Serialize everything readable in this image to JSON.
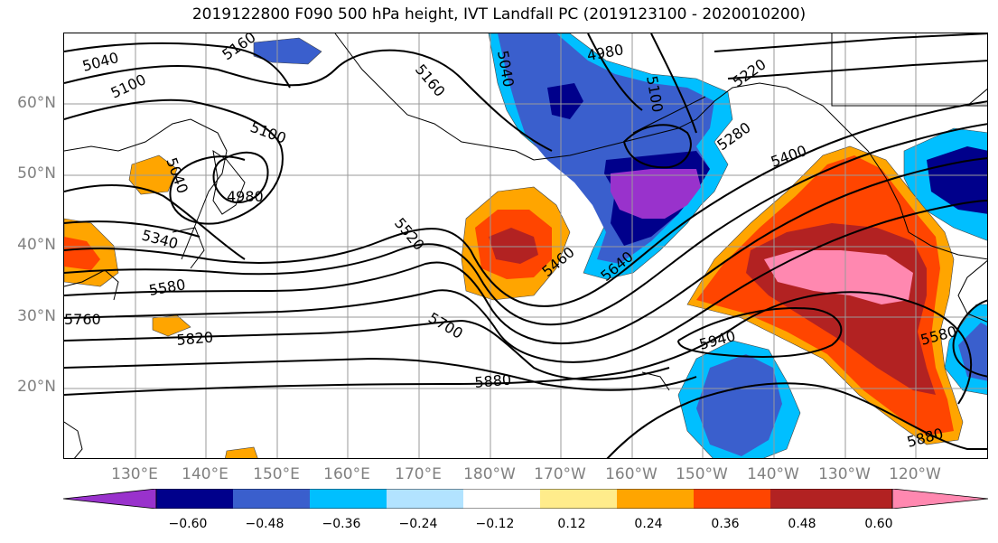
{
  "title": "2019122800 F090 500 hPa height, IVT Landfall PC (2019123100 - 2020010200)",
  "lat_labels": [
    "60°N",
    "50°N",
    "40°N",
    "30°N",
    "20°N"
  ],
  "lon_labels": [
    "130°E",
    "140°E",
    "150°E",
    "160°E",
    "170°E",
    "180°W",
    "170°W",
    "160°W",
    "150°W",
    "140°W",
    "130°W",
    "120°W"
  ],
  "contour_labels": [
    "5040",
    "5100",
    "5160",
    "5160",
    "5040",
    "4980",
    "5100",
    "5220",
    "5280",
    "5400",
    "5100",
    "5040",
    "4980",
    "5340",
    "5520",
    "5580",
    "5460",
    "5640",
    "5700",
    "5760",
    "5820",
    "5940",
    "5880",
    "5880",
    "5580"
  ],
  "colorbar": {
    "ticks": [
      "−0.60",
      "−0.48",
      "−0.36",
      "−0.24",
      "−0.12",
      "0.12",
      "0.24",
      "0.36",
      "0.48",
      "0.60"
    ],
    "colors": [
      "#9932CC",
      "#00008B",
      "#3A5FCD",
      "#00BFFF",
      "#B2E3FF",
      "#FFFFFF",
      "#FFEC8B",
      "#FFA500",
      "#FF4500",
      "#B22222",
      "#FF88B0"
    ]
  }
}
